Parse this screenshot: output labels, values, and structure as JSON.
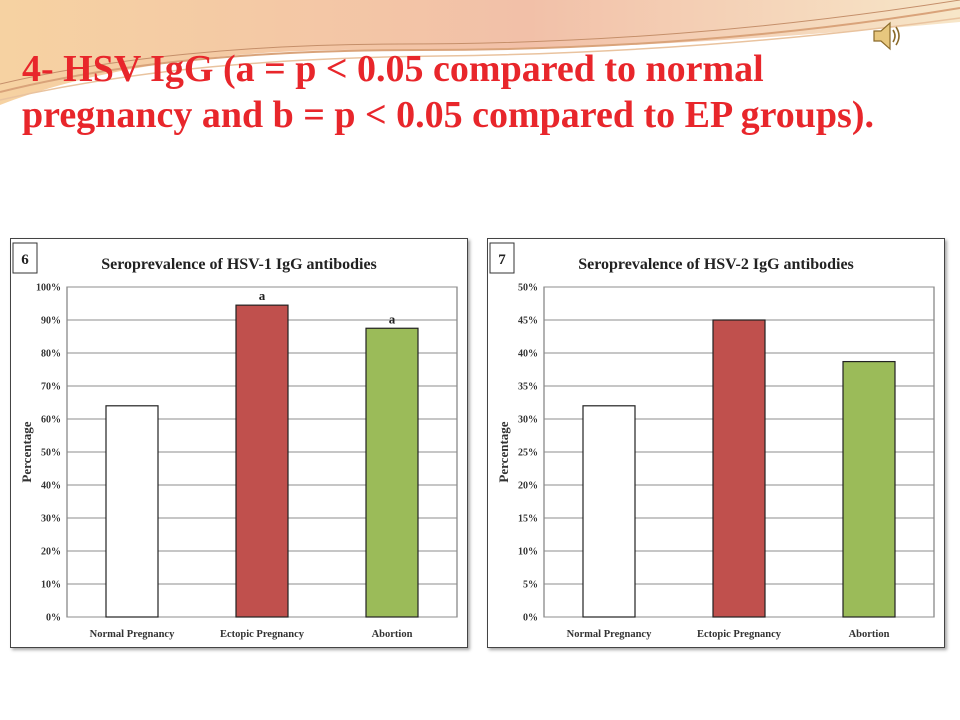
{
  "slide": {
    "title": "4- HSV IgG (a = p < 0.05 compared to normal pregnancy and b = p < 0.05 compared to EP groups)."
  },
  "icons": {
    "audio": "speaker-icon"
  },
  "colors": {
    "title": "#e8262b",
    "normal_bar": "#ffffff",
    "ectopic_bar": "#c0504d",
    "abortion_bar": "#9bbb59",
    "panel_border": "#444444"
  },
  "chart_data": [
    {
      "type": "bar",
      "panel_label": "6",
      "title": "Seroprevalence of HSV-1 IgG antibodies",
      "xlabel": "",
      "ylabel": "Percentage",
      "ylim": [
        0,
        100
      ],
      "yticks": [
        "0%",
        "10%",
        "20%",
        "30%",
        "40%",
        "50%",
        "60%",
        "70%",
        "80%",
        "90%",
        "100%"
      ],
      "grid": true,
      "categories": [
        "Normal Pregnancy",
        "Ectopic Pregnancy",
        "Abortion"
      ],
      "values": [
        64,
        94.5,
        87.5
      ],
      "annotations": [
        "",
        "a",
        "a"
      ],
      "colors": [
        "#ffffff",
        "#c0504d",
        "#9bbb59"
      ]
    },
    {
      "type": "bar",
      "panel_label": "7",
      "title": "Seroprevalence of HSV-2 IgG antibodies",
      "xlabel": "",
      "ylabel": "Percentage",
      "ylim": [
        0,
        50
      ],
      "yticks": [
        "0%",
        "5%",
        "10%",
        "15%",
        "20%",
        "25%",
        "30%",
        "35%",
        "40%",
        "45%",
        "50%"
      ],
      "grid": true,
      "categories": [
        "Normal Pregnancy",
        "Ectopic Pregnancy",
        "Abortion"
      ],
      "values": [
        32,
        45,
        38.7
      ],
      "annotations": [
        "",
        "",
        ""
      ],
      "colors": [
        "#ffffff",
        "#c0504d",
        "#9bbb59"
      ]
    }
  ]
}
